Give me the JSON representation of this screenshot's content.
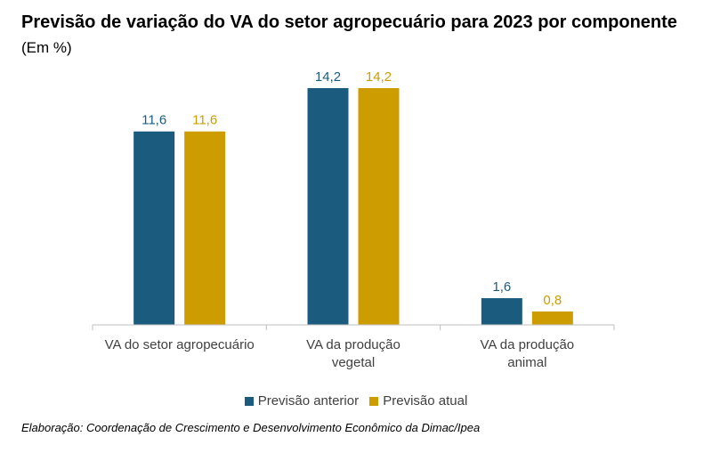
{
  "title": "Previsão de variação do VA do setor agropecuário para 2023 por componente",
  "subtitle": "(Em %)",
  "source": "Elaboração: Coordenação de Crescimento e Desenvolvimento Econômico da Dimac/Ipea",
  "colors": {
    "anterior": "#1b5c7e",
    "atual": "#cc9c00",
    "axis": "#bfbfbf",
    "label_text": "#404040"
  },
  "chart_data": {
    "type": "bar",
    "categories": [
      [
        "VA do setor agropecuário"
      ],
      [
        "VA da produção",
        "vegetal"
      ],
      [
        "VA da produção",
        "animal"
      ]
    ],
    "series": [
      {
        "name": "Previsão anterior",
        "values": [
          11.6,
          14.2,
          1.6
        ],
        "labels": [
          "11,6",
          "14,2",
          "1,6"
        ]
      },
      {
        "name": "Previsão atual",
        "values": [
          11.6,
          14.2,
          0.8
        ],
        "labels": [
          "11,6",
          "14,2",
          "0,8"
        ]
      }
    ],
    "ylim": [
      0,
      14.2
    ],
    "grid": false,
    "legend": "bottom"
  }
}
